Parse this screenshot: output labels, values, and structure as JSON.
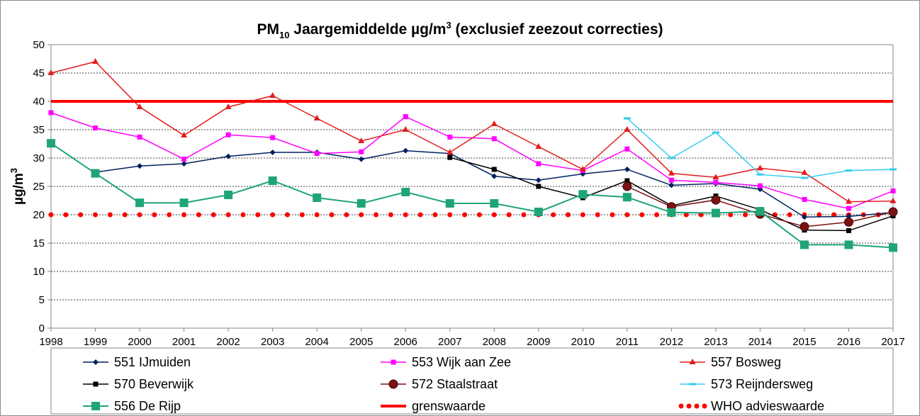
{
  "chart_data": {
    "type": "line",
    "title": {
      "main": "PM",
      "sub": "10",
      "rest": " Jaargemiddelde µg/m",
      "sup": "3",
      "tail": "  (exclusief zeezout correcties)"
    },
    "ylabel": {
      "main": "µg/m",
      "sup": "3"
    },
    "xlabel": "",
    "ylim": [
      0,
      50
    ],
    "yticks": [
      0,
      5,
      10,
      15,
      20,
      25,
      30,
      35,
      40,
      45,
      50
    ],
    "grid": true,
    "legend_position": "bottom",
    "x": [
      "1998",
      "1999",
      "2000",
      "2001",
      "2002",
      "2003",
      "2004",
      "2005",
      "2006",
      "2007",
      "2008",
      "2009",
      "2010",
      "2011",
      "2012",
      "2013",
      "2014",
      "2015",
      "2016",
      "2017"
    ],
    "series": [
      {
        "name": "551 IJmuiden",
        "color": "#002060",
        "marker": "diamond",
        "values": [
          null,
          27.5,
          28.6,
          29.0,
          30.3,
          31.0,
          31.0,
          29.8,
          31.3,
          30.8,
          26.8,
          26.1,
          27.2,
          28.0,
          25.2,
          25.5,
          24.5,
          19.6,
          19.7,
          20.4
        ]
      },
      {
        "name": "553 Wijk aan Zee",
        "color": "#ff00ff",
        "marker": "square",
        "values": [
          38.0,
          35.3,
          33.7,
          29.8,
          34.1,
          33.6,
          30.8,
          31.1,
          37.3,
          33.7,
          33.4,
          29.0,
          27.8,
          31.6,
          26.1,
          25.7,
          25.1,
          22.7,
          21.1,
          24.2
        ]
      },
      {
        "name": "557 Bosweg",
        "color": "#e41c1c",
        "marker": "triangle",
        "values": [
          45.0,
          47.0,
          39.0,
          34.0,
          39.0,
          41.0,
          37.0,
          33.0,
          35.0,
          31.0,
          36.0,
          32.0,
          28.0,
          35.0,
          27.3,
          26.6,
          28.2,
          27.4,
          22.3,
          22.4
        ]
      },
      {
        "name": "570 Beverwijk",
        "color": "#000000",
        "marker": "square-small",
        "values": [
          null,
          null,
          null,
          null,
          null,
          null,
          null,
          null,
          null,
          30.1,
          28.0,
          25.0,
          23.0,
          26.0,
          21.6,
          23.3,
          20.9,
          17.3,
          17.2,
          19.8
        ]
      },
      {
        "name": "572 Staalstraat",
        "color": "#7b1111",
        "marker": "circle",
        "values": [
          null,
          null,
          null,
          null,
          null,
          null,
          null,
          null,
          null,
          null,
          null,
          null,
          null,
          25.0,
          21.4,
          22.6,
          20.1,
          17.9,
          18.7,
          20.5
        ]
      },
      {
        "name": "573 Reijndersweg",
        "color": "#33ccee",
        "marker": "dash",
        "values": [
          null,
          null,
          null,
          null,
          null,
          null,
          null,
          null,
          null,
          null,
          null,
          null,
          null,
          37.0,
          30.0,
          34.5,
          27.1,
          26.5,
          27.8,
          28.0
        ]
      },
      {
        "name": "556 De Rijp",
        "color": "#1fa575",
        "marker": "square-large",
        "values": [
          32.6,
          27.3,
          22.1,
          22.1,
          23.5,
          26.0,
          23.0,
          22.0,
          24.0,
          22.0,
          22.0,
          20.5,
          23.6,
          23.1,
          20.4,
          20.3,
          20.6,
          14.7,
          14.7,
          14.2
        ]
      }
    ],
    "reference_lines": [
      {
        "name": "grenswaarde",
        "value": 40,
        "color": "#ff0000",
        "style": "solid"
      },
      {
        "name": "WHO advieswaarde",
        "value": 20,
        "color": "#ff0000",
        "style": "dotted"
      }
    ],
    "legend": [
      {
        "label": "551 IJmuiden",
        "ref": "series",
        "index": 0
      },
      {
        "label": "553 Wijk aan Zee",
        "ref": "series",
        "index": 1
      },
      {
        "label": "557 Bosweg",
        "ref": "series",
        "index": 2
      },
      {
        "label": "570 Beverwijk",
        "ref": "series",
        "index": 3
      },
      {
        "label": "572 Staalstraat",
        "ref": "series",
        "index": 4
      },
      {
        "label": "573 Reijndersweg",
        "ref": "series",
        "index": 5
      },
      {
        "label": "556 De Rijp",
        "ref": "series",
        "index": 6
      },
      {
        "label": "grenswaarde",
        "ref": "line",
        "index": 0
      },
      {
        "label": "WHO advieswaarde",
        "ref": "line",
        "index": 1
      }
    ]
  }
}
